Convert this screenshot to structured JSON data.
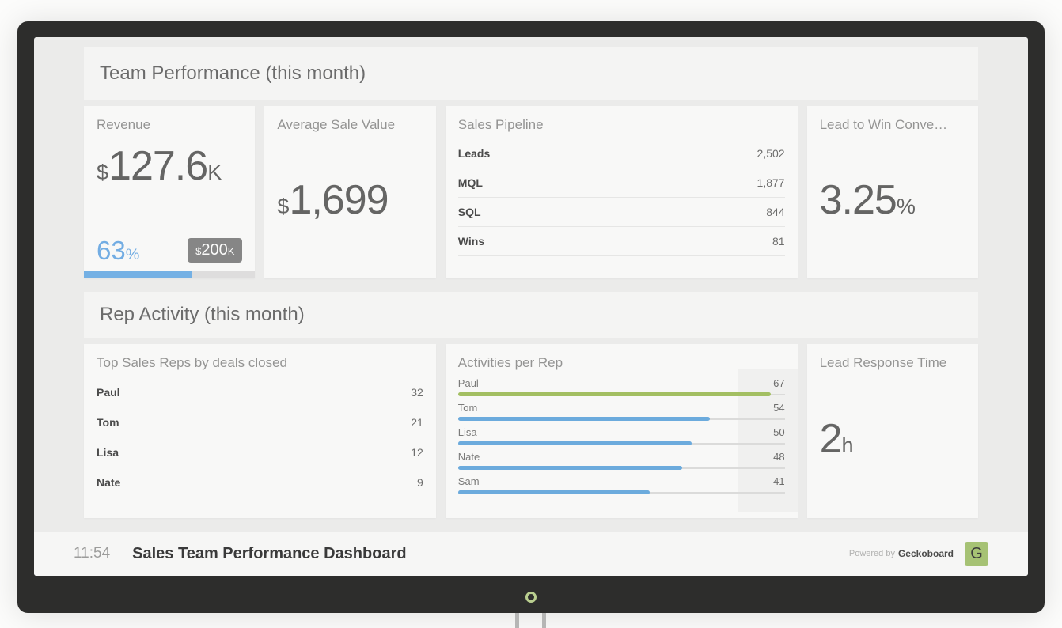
{
  "device": {
    "power_ring": "power-indicator"
  },
  "sections": {
    "team": {
      "title": "Team Performance (this month)"
    },
    "rep": {
      "title": "Rep Activity (this month)"
    }
  },
  "cards": {
    "revenue": {
      "title": "Revenue",
      "prefix": "$",
      "value": "127.6",
      "suffix": "K",
      "percent": "63",
      "percent_suffix": "%",
      "badge_prefix": "$",
      "badge_value": "200",
      "badge_suffix": "K",
      "progress_pct": 63
    },
    "avg_sale": {
      "title": "Average Sale Value",
      "prefix": "$",
      "value": "1,699"
    },
    "pipeline": {
      "title": "Sales Pipeline",
      "rows": [
        {
          "label": "Leads",
          "value": "2,502"
        },
        {
          "label": "MQL",
          "value": "1,877"
        },
        {
          "label": "SQL",
          "value": "844"
        },
        {
          "label": "Wins",
          "value": "81"
        }
      ]
    },
    "lead_to_win": {
      "title": "Lead to Win Conve…",
      "value": "3.25",
      "suffix": "%"
    },
    "top_reps": {
      "title": "Top Sales Reps by deals closed",
      "rows": [
        {
          "label": "Paul",
          "value": "32"
        },
        {
          "label": "Tom",
          "value": "21"
        },
        {
          "label": "Lisa",
          "value": "12"
        },
        {
          "label": "Nate",
          "value": "9"
        }
      ]
    },
    "activities": {
      "title": "Activities per Rep",
      "max": 70,
      "bars": [
        {
          "label": "Paul",
          "value": 67,
          "color": "#a3bf62"
        },
        {
          "label": "Tom",
          "value": 54,
          "color": "#6cabdd"
        },
        {
          "label": "Lisa",
          "value": 50,
          "color": "#6cabdd"
        },
        {
          "label": "Nate",
          "value": 48,
          "color": "#6cabdd"
        },
        {
          "label": "Sam",
          "value": 41,
          "color": "#6cabdd"
        }
      ]
    },
    "lead_response": {
      "title": "Lead Response Time",
      "value": "2",
      "suffix": "h"
    }
  },
  "footer": {
    "time": "11:54",
    "title": "Sales Team Performance Dashboard",
    "powered_by": "Powered by",
    "brand": "Geckoboard",
    "logo_letter": "G"
  },
  "colors": {
    "accent_blue": "#74b0e4",
    "accent_green": "#a3bf62",
    "brand_green": "#a6c274"
  },
  "chart_data": [
    {
      "type": "table",
      "title": "Team Performance (this month)",
      "note": "section header"
    },
    {
      "type": "bar",
      "title": "Revenue",
      "display": "$127.6K",
      "value": 127600,
      "progress_percent": 63,
      "target_display": "$200K"
    },
    {
      "type": "table",
      "title": "Average Sale Value",
      "display": "$1,699",
      "value": 1699
    },
    {
      "type": "table",
      "title": "Sales Pipeline",
      "categories": [
        "Leads",
        "MQL",
        "SQL",
        "Wins"
      ],
      "values": [
        2502,
        1877,
        844,
        81
      ]
    },
    {
      "type": "table",
      "title": "Lead to Win Conve…",
      "display": "3.25%",
      "value": 3.25
    },
    {
      "type": "table",
      "title": "Top Sales Reps by deals closed",
      "categories": [
        "Paul",
        "Tom",
        "Lisa",
        "Nate"
      ],
      "values": [
        32,
        21,
        12,
        9
      ]
    },
    {
      "type": "bar",
      "title": "Activities per Rep",
      "orientation": "horizontal",
      "categories": [
        "Paul",
        "Tom",
        "Lisa",
        "Nate",
        "Sam"
      ],
      "values": [
        67,
        54,
        50,
        48,
        41
      ],
      "xlim": [
        0,
        70
      ],
      "highlight": "Paul",
      "highlight_color": "#a3bf62",
      "bar_color": "#6cabdd"
    },
    {
      "type": "table",
      "title": "Lead Response Time",
      "display": "2h",
      "value": 2
    }
  ]
}
